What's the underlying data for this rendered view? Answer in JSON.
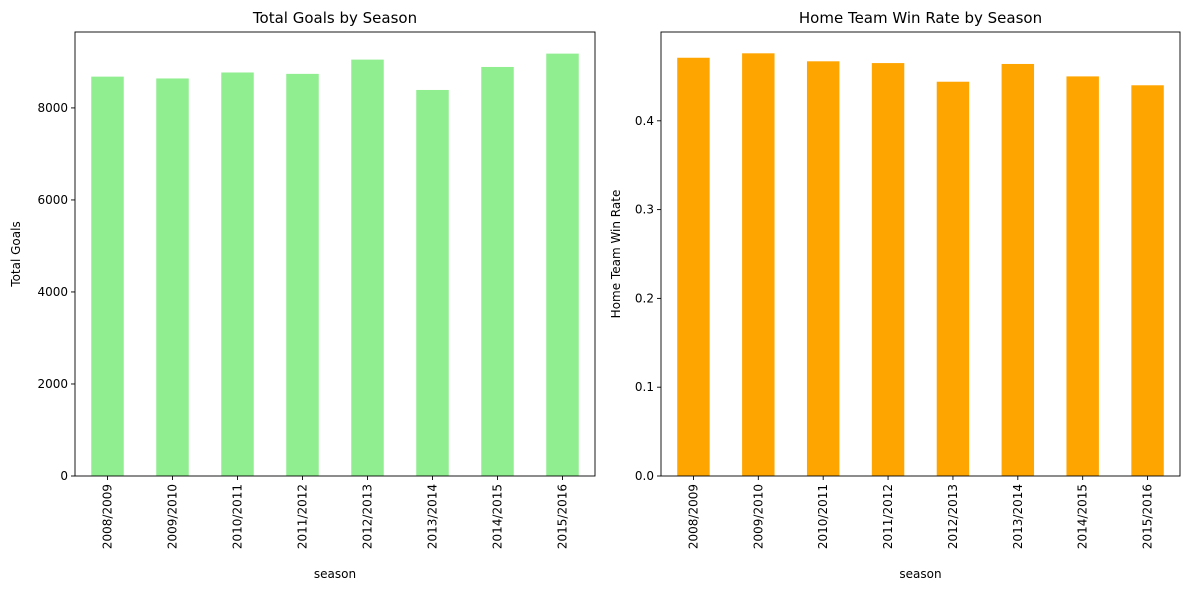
{
  "chart_data": [
    {
      "type": "bar",
      "title": "Total Goals by Season",
      "xlabel": "season",
      "ylabel": "Total Goals",
      "categories": [
        "2008/2009",
        "2009/2010",
        "2010/2011",
        "2011/2012",
        "2012/2013",
        "2013/2014",
        "2014/2015",
        "2015/2016"
      ],
      "values": [
        8680,
        8640,
        8770,
        8740,
        9050,
        8390,
        8890,
        9180
      ],
      "ylim": [
        0,
        9650
      ],
      "yticks": [
        0,
        2000,
        4000,
        6000,
        8000
      ],
      "ytick_labels": [
        "0",
        "2000",
        "4000",
        "6000",
        "8000"
      ],
      "color": "#90ee90",
      "grid": false,
      "legend": "none"
    },
    {
      "type": "bar",
      "title": "Home Team Win Rate by Season",
      "xlabel": "season",
      "ylabel": "Home Team Win Rate",
      "categories": [
        "2008/2009",
        "2009/2010",
        "2010/2011",
        "2011/2012",
        "2012/2013",
        "2013/2014",
        "2014/2015",
        "2015/2016"
      ],
      "values": [
        0.471,
        0.476,
        0.467,
        0.465,
        0.444,
        0.464,
        0.45,
        0.44
      ],
      "ylim": [
        0,
        0.5
      ],
      "yticks": [
        0,
        0.1,
        0.2,
        0.3,
        0.4
      ],
      "ytick_labels": [
        "0.0",
        "0.1",
        "0.2",
        "0.3",
        "0.4"
      ],
      "color": "#ffa500",
      "grid": false,
      "legend": "none"
    }
  ]
}
